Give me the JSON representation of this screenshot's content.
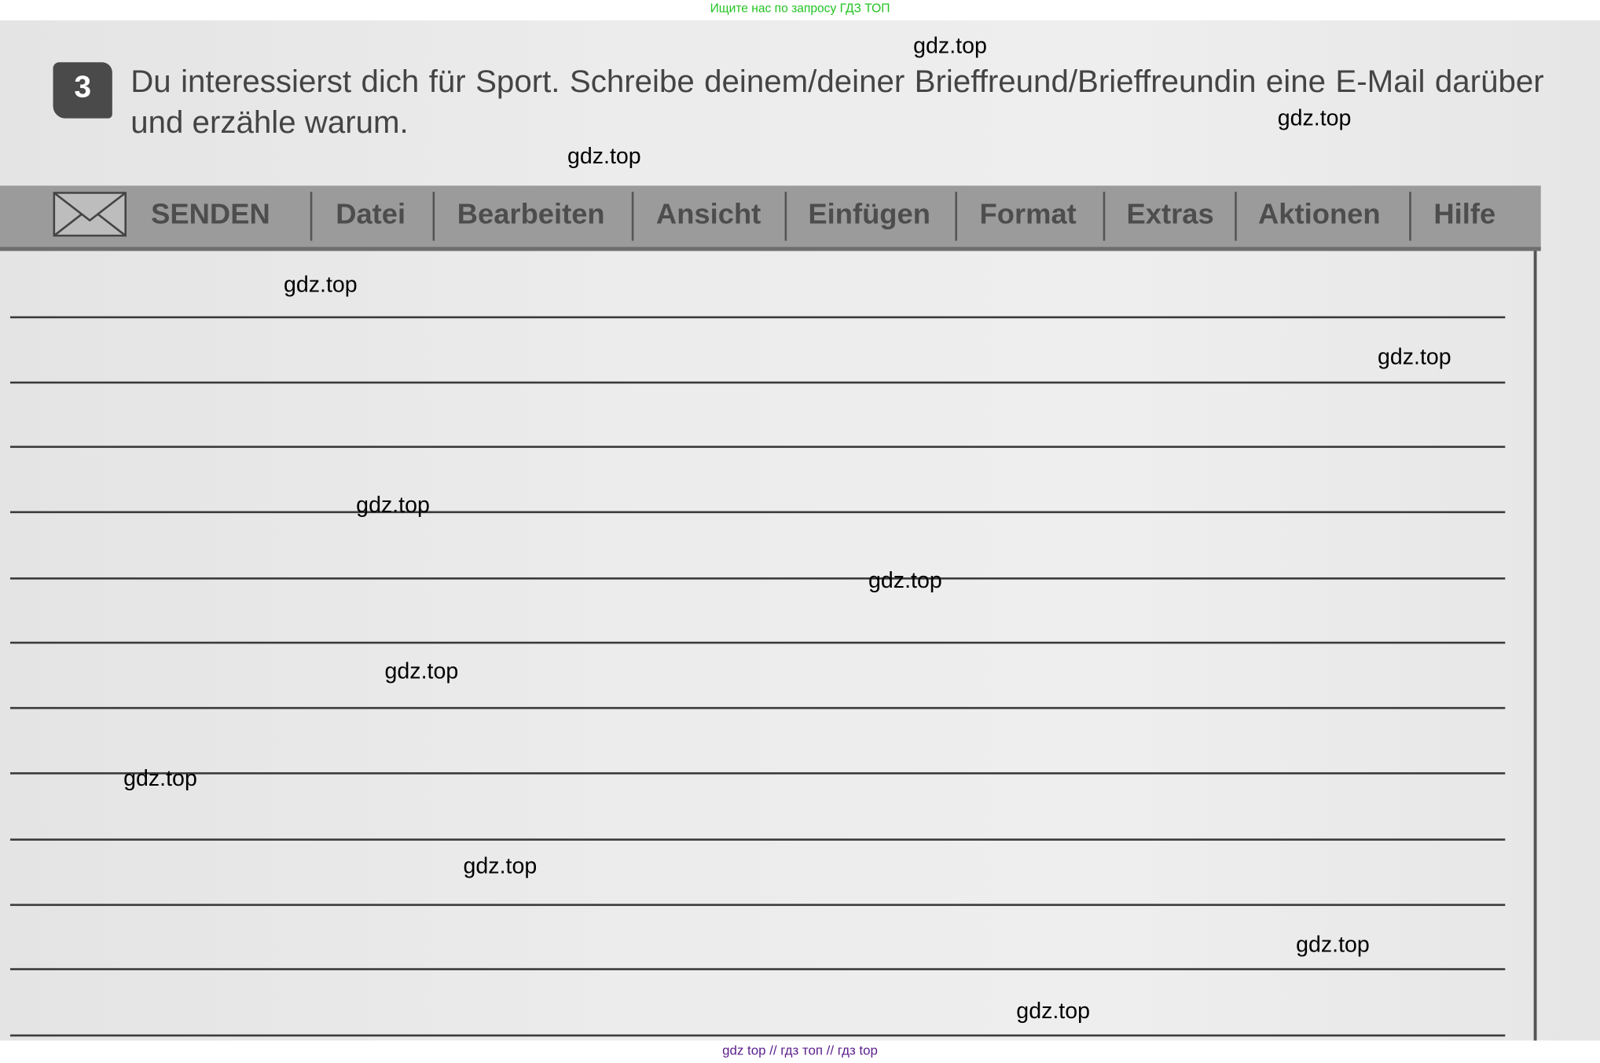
{
  "banner": {
    "text": "Ищите нас по запросу ГДЗ ТОП",
    "color": "#22c322"
  },
  "task": {
    "number": "3",
    "text": "Du interessierst dich für Sport. Schreibe deinem/deiner Brieffreund/Brieffreundin eine E-Mail darüber und erzähle warum."
  },
  "toolbar": {
    "icon": "envelope-icon",
    "send_label": "SENDEN",
    "menu": [
      "Datei",
      "Bearbeiten",
      "Ansicht",
      "Einfügen",
      "Format",
      "Extras",
      "Aktionen",
      "Hilfe"
    ]
  },
  "watermark": "gdz.top",
  "footer": {
    "text": "gdz top  //  гдз топ  //  гдз top",
    "color": "#5a1e8c"
  }
}
